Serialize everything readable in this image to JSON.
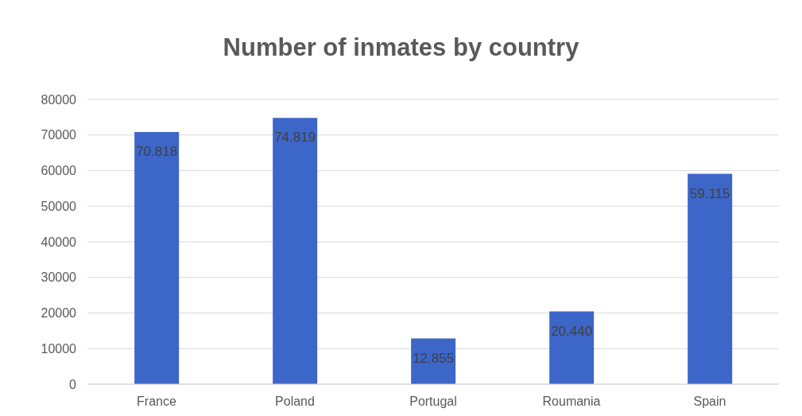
{
  "chart_data": {
    "type": "bar",
    "title": "Number of inmates by country",
    "categories": [
      "France",
      "Poland",
      "Portugal",
      "Roumania",
      "Spain"
    ],
    "values": [
      70818,
      74819,
      12855,
      20440,
      59115
    ],
    "value_labels": [
      "70.818",
      "74.819",
      "12.855",
      "20.440",
      "59.115"
    ],
    "color": "#3d66c9",
    "ylim": [
      0,
      80000
    ],
    "yticks": [
      0,
      10000,
      20000,
      30000,
      40000,
      50000,
      60000,
      70000,
      80000
    ],
    "grid": "y"
  }
}
